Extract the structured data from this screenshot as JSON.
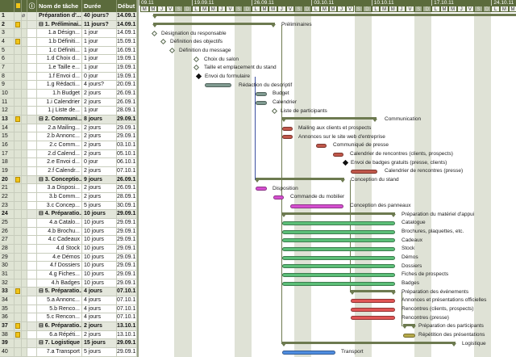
{
  "table": {
    "headers": {
      "name": "Nom de tâche",
      "duration": "Durée",
      "start": "Début"
    },
    "rows": [
      {
        "id": "1",
        "note": false,
        "clip": true,
        "name": "Préparation d'...",
        "duration": "40 jours?",
        "start": "14.09.1",
        "summary": true
      },
      {
        "id": "2",
        "note": true,
        "name": "⊟ 1. Préliminai...",
        "duration": "11 jours?",
        "start": "14.09.1",
        "summary": true
      },
      {
        "id": "3",
        "name": "1.a Désign...",
        "duration": "1 jour",
        "start": "14.09.1"
      },
      {
        "id": "4",
        "note": true,
        "name": "1.b Définiti...",
        "duration": "1 jour",
        "start": "15.09.1"
      },
      {
        "id": "5",
        "name": "1.c Définiti...",
        "duration": "1 jour",
        "start": "16.09.1"
      },
      {
        "id": "6",
        "name": "1.d Choix d...",
        "duration": "1 jour",
        "start": "19.09.1"
      },
      {
        "id": "7",
        "name": "1.e Taille e...",
        "duration": "1 jour",
        "start": "19.09.1"
      },
      {
        "id": "8",
        "name": "1.f Envoi d...",
        "duration": "0 jour",
        "start": "19.09.1"
      },
      {
        "id": "9",
        "name": "1.g Rédacti...",
        "duration": "4 jours?",
        "start": "20.09.1"
      },
      {
        "id": "10",
        "name": "1.h Budget",
        "duration": "2 jours",
        "start": "26.09.1"
      },
      {
        "id": "11",
        "name": "1.i Calendrier",
        "duration": "2 jours",
        "start": "26.09.1"
      },
      {
        "id": "12",
        "name": "1.j Liste de...",
        "duration": "1 jour",
        "start": "28.09.1"
      },
      {
        "id": "13",
        "note": true,
        "name": "⊟ 2. Communi...",
        "duration": "8 jours",
        "start": "29.09.1",
        "summary": true
      },
      {
        "id": "14",
        "name": "2.a Mailing...",
        "duration": "2 jours",
        "start": "29.09.1"
      },
      {
        "id": "15",
        "name": "2.b Annonc...",
        "duration": "2 jours",
        "start": "29.09.1"
      },
      {
        "id": "16",
        "name": "2.c Comm...",
        "duration": "2 jours",
        "start": "03.10.1"
      },
      {
        "id": "17",
        "name": "2.d Calend...",
        "duration": "2 jours",
        "start": "05.10.1"
      },
      {
        "id": "18",
        "name": "2.e Envoi d...",
        "duration": "0 jour",
        "start": "06.10.1"
      },
      {
        "id": "19",
        "name": "2.f Calendr...",
        "duration": "2 jours",
        "start": "07.10.1"
      },
      {
        "id": "20",
        "note": true,
        "name": "⊟ 3. Conceptio...",
        "duration": "9 jours",
        "start": "26.09.1",
        "summary": true
      },
      {
        "id": "21",
        "name": "3.a Disposi...",
        "duration": "2 jours",
        "start": "26.09.1"
      },
      {
        "id": "22",
        "name": "3.b Comm...",
        "duration": "2 jours",
        "start": "28.09.1"
      },
      {
        "id": "23",
        "name": "3.c Concep...",
        "duration": "5 jours",
        "start": "30.09.1"
      },
      {
        "id": "24",
        "name": "⊟ 4. Préparatio...",
        "duration": "10 jours",
        "start": "29.09.1",
        "summary": true
      },
      {
        "id": "25",
        "name": "4.a Catalo...",
        "duration": "10 jours",
        "start": "29.09.1"
      },
      {
        "id": "26",
        "name": "4.b Brochu...",
        "duration": "10 jours",
        "start": "29.09.1"
      },
      {
        "id": "27",
        "name": "4.c Cadeaux",
        "duration": "10 jours",
        "start": "29.09.1"
      },
      {
        "id": "28",
        "name": "4.d Stock",
        "duration": "10 jours",
        "start": "29.09.1"
      },
      {
        "id": "29",
        "name": "4.e Démos",
        "duration": "10 jours",
        "start": "29.09.1"
      },
      {
        "id": "30",
        "name": "4.f Dossiers",
        "duration": "10 jours",
        "start": "29.09.1"
      },
      {
        "id": "31",
        "name": "4.g Fiches...",
        "duration": "10 jours",
        "start": "29.09.1"
      },
      {
        "id": "32",
        "name": "4.h Badges",
        "duration": "10 jours",
        "start": "29.09.1"
      },
      {
        "id": "33",
        "note": true,
        "name": "⊟ 5. Préparatio...",
        "duration": "4 jours",
        "start": "07.10.1",
        "summary": true
      },
      {
        "id": "34",
        "name": "5.a Annonc...",
        "duration": "4 jours",
        "start": "07.10.1"
      },
      {
        "id": "35",
        "name": "5.b Renco...",
        "duration": "4 jours",
        "start": "07.10.1"
      },
      {
        "id": "36",
        "name": "5.c Rencon...",
        "duration": "4 jours",
        "start": "07.10.1"
      },
      {
        "id": "37",
        "note": true,
        "name": "⊟ 6. Préparatio...",
        "duration": "2 jours",
        "start": "13.10.1",
        "summary": true
      },
      {
        "id": "38",
        "note": true,
        "name": "6.a Répéti...",
        "duration": "2 jours",
        "start": "13.10.1"
      },
      {
        "id": "39",
        "name": "⊟ 7. Logistique",
        "duration": "15 jours",
        "start": "29.09.1",
        "summary": true
      },
      {
        "id": "40",
        "name": "7.a Transport",
        "duration": "5 jours",
        "start": "29.09.1"
      }
    ]
  },
  "timescale": {
    "weeks": [
      "09.11",
      "19.09.11",
      "26.09.11",
      "03.10.11",
      "10.10.11",
      "17.10.11",
      "24.10.11"
    ],
    "first_days": [
      "M",
      "M",
      "J",
      "V",
      "S",
      "D"
    ],
    "week_days": [
      "L",
      "M",
      "M",
      "J",
      "V",
      "S",
      "D"
    ]
  },
  "gantt_labels": [
    "",
    "Préliminaires",
    "Désignation du responsable",
    "Définition des objectifs",
    "Définition du message",
    "Choix du salon",
    "Taille et emplacement du stand",
    "Envoi du formulaire",
    "Rédaction du descriptif",
    "Budget",
    "Calendrier",
    "Liste de participants",
    "Communication",
    "Mailing aux clients et prospects",
    "Annonces sur le site web d'entreprise",
    "Communiqué de presse",
    "Calendrier de rencontres (clients, prospects)",
    "Envoi de badges gratuits (presse, clients)",
    "Calendrier de rencontres (presse)",
    "Conception du stand",
    "Disposition",
    "Commande du mobilier",
    "Conception des panneaux",
    "Préparation du matériel d'appui",
    "Catalogue",
    "Brochures, plaquettes, etc.",
    "Cadeaux",
    "Stock",
    "Démos",
    "Dossiers",
    "Fiches de prospects",
    "Badges",
    "Préparation des événements",
    "Annonces et présentations officielles",
    "Rencontres (clients, prospects)",
    "Rencontres (presse)",
    "Préparation des participants",
    "Répétition des présentations",
    "Logistique",
    "Transport"
  ],
  "colors": {
    "header": "#5b6b3c",
    "summary": "#6d7a50",
    "preliminaires": "#7f9a90",
    "communication": "#c0574a",
    "conception": "#d64fd0",
    "materiel": "#5cbf78",
    "evenements": "#e05555",
    "repetition": "#b6aa4a",
    "logistique": "#4f8de0"
  }
}
